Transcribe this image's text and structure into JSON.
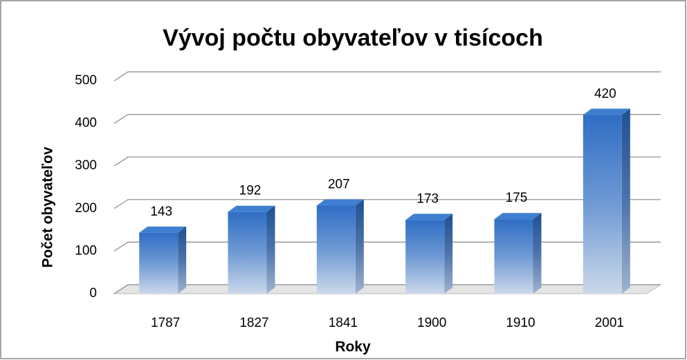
{
  "chart_data": {
    "type": "bar3d",
    "title": "Vývoj počtu obyvateľov v tisícoch",
    "x_label": "Roky",
    "y_label": "Počet obyvateľov",
    "categories": [
      "1787",
      "1827",
      "1841",
      "1900",
      "1910",
      "2001"
    ],
    "values": [
      143,
      192,
      207,
      173,
      175,
      420
    ],
    "color": "#3a78c8",
    "ylim": [
      0,
      500
    ],
    "yticks": [
      0,
      100,
      200,
      300,
      400,
      500
    ],
    "grid": true
  }
}
